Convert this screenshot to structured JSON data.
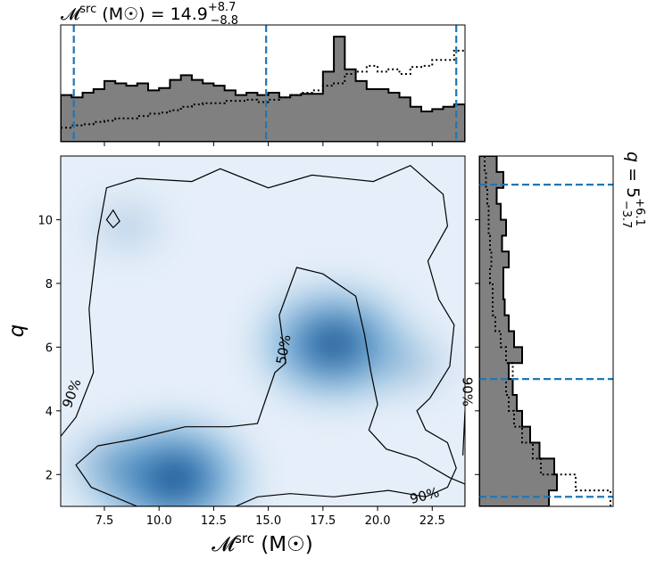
{
  "chart_data": [
    {
      "type": "histogram",
      "panel": "top-marginal",
      "title": "𝓜ˢʳᶜ (M☉) = 14.9 +8.7/−8.8",
      "title_parts": {
        "symbol": "𝓜",
        "sup": "src",
        "unit": " (M☉) = ",
        "median": "14.9",
        "plus": "+8.7",
        "minus": "−8.8"
      },
      "x_range": [
        5.5,
        24.0
      ],
      "bin_edges": [
        5.5,
        6.0,
        6.5,
        7.0,
        7.5,
        8.0,
        8.5,
        9.0,
        9.5,
        10.0,
        10.5,
        11.0,
        11.5,
        12.0,
        12.5,
        13.0,
        13.5,
        14.0,
        14.5,
        15.0,
        15.5,
        16.0,
        16.5,
        17.0,
        17.5,
        18.0,
        18.5,
        19.0,
        19.5,
        20.0,
        20.5,
        21.0,
        21.5,
        22.0,
        22.5,
        23.0,
        23.5,
        24.0
      ],
      "histogram_filled": [
        0.4,
        0.38,
        0.42,
        0.45,
        0.52,
        0.5,
        0.48,
        0.5,
        0.44,
        0.46,
        0.53,
        0.57,
        0.53,
        0.5,
        0.48,
        0.44,
        0.4,
        0.42,
        0.4,
        0.42,
        0.38,
        0.4,
        0.41,
        0.41,
        0.6,
        0.9,
        0.62,
        0.52,
        0.45,
        0.45,
        0.42,
        0.38,
        0.3,
        0.26,
        0.28,
        0.3,
        0.32
      ],
      "histogram_dotted": [
        0.12,
        0.14,
        0.15,
        0.17,
        0.18,
        0.2,
        0.2,
        0.22,
        0.24,
        0.25,
        0.27,
        0.3,
        0.32,
        0.33,
        0.33,
        0.35,
        0.35,
        0.36,
        0.34,
        0.36,
        0.38,
        0.4,
        0.42,
        0.44,
        0.48,
        0.5,
        0.58,
        0.6,
        0.65,
        0.6,
        0.62,
        0.58,
        0.64,
        0.65,
        0.7,
        0.7,
        0.78
      ],
      "quantile_lines": [
        6.1,
        14.9,
        23.6
      ]
    },
    {
      "type": "heatmap",
      "panel": "joint-density",
      "xlabel_parts": {
        "symbol": "𝓜",
        "sup": "src",
        "unit": " (M☉)"
      },
      "ylabel": "q",
      "xlim": [
        5.5,
        24.0
      ],
      "ylim": [
        1.0,
        12.0
      ],
      "xticks": [
        "7.5",
        "10.0",
        "12.5",
        "15.0",
        "17.5",
        "20.0",
        "22.5"
      ],
      "yticks": [
        "2",
        "4",
        "6",
        "8",
        "10"
      ],
      "colormap": "Blues",
      "density_peaks": [
        {
          "x": 10.6,
          "y": 1.9,
          "weight": 1.0
        },
        {
          "x": 18.0,
          "y": 6.1,
          "weight": 0.95
        },
        {
          "x": 7.8,
          "y": 2.3,
          "weight": 0.35
        },
        {
          "x": 21.5,
          "y": 5.5,
          "weight": 0.25
        },
        {
          "x": 8.5,
          "y": 9.8,
          "weight": 0.2
        }
      ],
      "contours": [
        {
          "level": "90%",
          "points": [
            [
              5.5,
              3.2
            ],
            [
              6.2,
              3.8
            ],
            [
              7.0,
              5.2
            ],
            [
              6.8,
              7.2
            ],
            [
              7.2,
              9.5
            ],
            [
              7.6,
              11.0
            ],
            [
              9.0,
              11.3
            ],
            [
              11.5,
              11.2
            ],
            [
              12.8,
              11.6
            ],
            [
              15.0,
              11.0
            ],
            [
              17.0,
              11.4
            ],
            [
              19.8,
              11.2
            ],
            [
              21.5,
              11.7
            ],
            [
              23.0,
              10.8
            ],
            [
              23.2,
              9.8
            ],
            [
              22.3,
              8.7
            ],
            [
              22.8,
              7.5
            ],
            [
              23.5,
              6.7
            ],
            [
              23.3,
              5.4
            ],
            [
              22.4,
              4.4
            ],
            [
              21.8,
              4.0
            ],
            [
              22.2,
              3.4
            ],
            [
              23.2,
              3.0
            ],
            [
              23.6,
              2.2
            ],
            [
              23.2,
              1.6
            ],
            [
              22.2,
              1.3
            ],
            [
              20.5,
              1.5
            ],
            [
              18.0,
              1.3
            ],
            [
              16.0,
              1.4
            ],
            [
              14.5,
              1.3
            ],
            [
              13.5,
              1.0
            ]
          ]
        },
        {
          "level": "90%",
          "points": [
            [
              23.9,
              2.6
            ],
            [
              24.0,
              4.0
            ]
          ]
        },
        {
          "level": "50%",
          "points": [
            [
              15.8,
              5.5
            ],
            [
              15.5,
              7.0
            ],
            [
              16.3,
              8.5
            ],
            [
              17.5,
              8.3
            ],
            [
              19.0,
              7.6
            ],
            [
              19.4,
              6.4
            ],
            [
              19.7,
              5.2
            ],
            [
              20.0,
              4.2
            ],
            [
              19.6,
              3.4
            ],
            [
              20.4,
              2.8
            ],
            [
              21.8,
              2.5
            ],
            [
              23.3,
              1.9
            ],
            [
              24.0,
              1.7
            ],
            [
              24.0,
              1.0
            ],
            [
              9.0,
              1.0
            ],
            [
              6.9,
              1.6
            ],
            [
              6.2,
              2.3
            ],
            [
              7.2,
              2.9
            ],
            [
              8.8,
              3.1
            ],
            [
              11.2,
              3.5
            ],
            [
              13.2,
              3.5
            ],
            [
              14.5,
              3.6
            ],
            [
              14.9,
              4.4
            ],
            [
              15.3,
              5.2
            ],
            [
              15.8,
              5.5
            ]
          ]
        },
        {
          "level": "",
          "closed": true,
          "points": [
            [
              7.6,
              10.0
            ],
            [
              7.9,
              9.75
            ],
            [
              8.2,
              9.95
            ],
            [
              7.9,
              10.3
            ],
            [
              7.6,
              10.0
            ]
          ]
        }
      ],
      "contour_labels": [
        {
          "text": "90%",
          "x": 6.2,
          "y": 4.5,
          "angle": -70
        },
        {
          "text": "50%",
          "x": 15.9,
          "y": 5.9,
          "angle": -80
        },
        {
          "text": "90%",
          "x": 23.9,
          "y": 4.6,
          "angle": 90
        },
        {
          "text": "90%",
          "x": 22.2,
          "y": 1.2,
          "angle": -15
        }
      ]
    },
    {
      "type": "histogram",
      "panel": "right-marginal",
      "orientation": "horizontal",
      "side_title": "q = 5 +6.1/−3.7",
      "side_title_parts": {
        "symbol": "q",
        "eq": " = ",
        "median": "5",
        "plus": "+6.1",
        "minus": "−3.7"
      },
      "y_range": [
        1.0,
        12.0
      ],
      "bin_edges": [
        1.0,
        1.5,
        2.0,
        2.5,
        3.0,
        3.5,
        4.0,
        4.5,
        5.0,
        5.5,
        6.0,
        6.5,
        7.0,
        7.5,
        8.0,
        8.5,
        9.0,
        9.5,
        10.0,
        10.5,
        11.0,
        11.5,
        12.0
      ],
      "histogram_filled": [
        0.52,
        0.58,
        0.56,
        0.45,
        0.38,
        0.32,
        0.28,
        0.25,
        0.22,
        0.32,
        0.26,
        0.22,
        0.19,
        0.18,
        0.18,
        0.22,
        0.17,
        0.2,
        0.16,
        0.13,
        0.18,
        0.13
      ],
      "histogram_dotted": [
        0.98,
        0.72,
        0.46,
        0.4,
        0.32,
        0.26,
        0.22,
        0.2,
        0.25,
        0.2,
        0.16,
        0.12,
        0.1,
        0.1,
        0.08,
        0.09,
        0.08,
        0.07,
        0.07,
        0.06,
        0.05,
        0.04
      ],
      "quantile_lines": [
        1.3,
        5.0,
        11.1
      ]
    }
  ]
}
